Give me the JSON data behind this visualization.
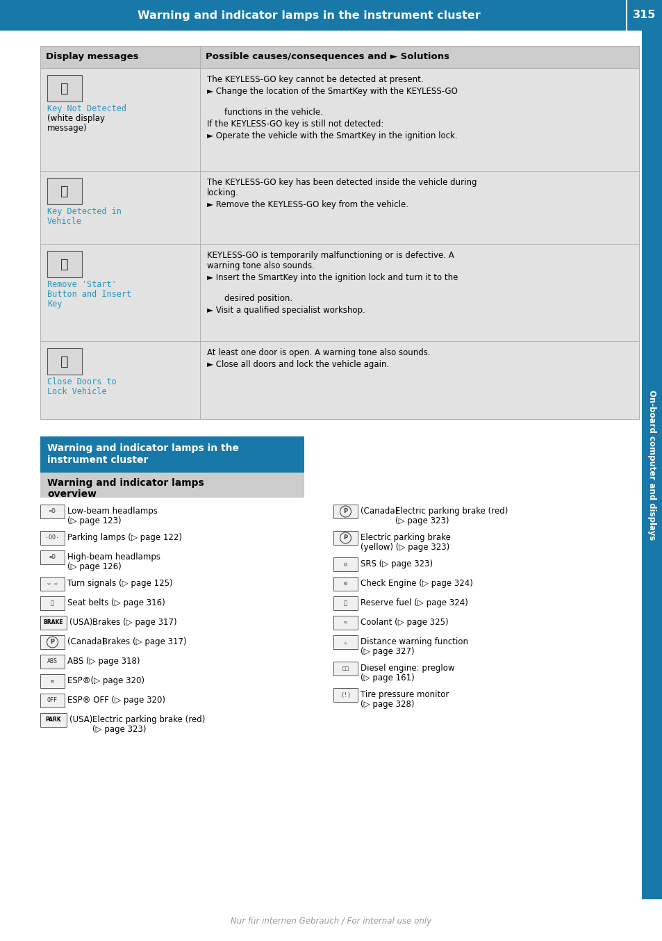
{
  "page_title": "Warning and indicator lamps in the instrument cluster",
  "page_number": "315",
  "header_bg": "#1878a8",
  "header_text_color": "#ffffff",
  "sidebar_text": "On-board computer and displays",
  "sidebar_bg": "#1878a8",
  "table_header_bg": "#cccccc",
  "table_row_bg": "#e2e2e2",
  "section2_header_bg": "#1878a8",
  "section2_sub_bg": "#cccccc",
  "table_header_col1": "Display messages",
  "table_header_col2": "Possible causes/consequences and ► Solutions",
  "blue_text_color": "#2596be",
  "rows": [
    {
      "label_blue": "Key Not Detected",
      "label_normal": "(white display\nmessage)",
      "content": [
        {
          "type": "plain",
          "text": "The KEYLESS-GO key cannot be detected at present."
        },
        {
          "type": "bullet",
          "text": "Change the location of the SmartKey with the KEYLESS-GO\n    functions in the vehicle."
        },
        {
          "type": "plain",
          "text": "If the KEYLESS-GO key is still not detected:"
        },
        {
          "type": "bullet",
          "text": "Operate the vehicle with the SmartKey in the ignition lock."
        }
      ]
    },
    {
      "label_blue": "Key Detected in\nVehicle",
      "label_normal": "",
      "content": [
        {
          "type": "plain",
          "text": "The KEYLESS-GO key has been detected inside the vehicle during\nlocking."
        },
        {
          "type": "bullet",
          "text": "Remove the KEYLESS-GO key from the vehicle."
        }
      ]
    },
    {
      "label_blue": "Remove 'Start'\nButton and Insert\nKey",
      "label_normal": "",
      "content": [
        {
          "type": "plain",
          "text": "KEYLESS-GO is temporarily malfunctioning or is defective. A\nwarning tone also sounds."
        },
        {
          "type": "bullet",
          "text": "Insert the SmartKey into the ignition lock and turn it to the\n    desired position."
        },
        {
          "type": "bullet",
          "text": "Visit a qualified specialist workshop."
        }
      ]
    },
    {
      "label_blue": "Close Doors to\nLock Vehicle",
      "label_normal": "",
      "content": [
        {
          "type": "plain",
          "text": "At least one door is open. A warning tone also sounds."
        },
        {
          "type": "bullet",
          "text": "Close all doors and lock the vehicle again."
        }
      ]
    }
  ],
  "left_items": [
    {
      "icon": "headlamp_low",
      "prefix": "",
      "text": "Low-beam headlamps\n(▷ page 123)"
    },
    {
      "icon": "parking_lamp",
      "prefix": "",
      "text": "Parking lamps (▷ page 122)"
    },
    {
      "icon": "headlamp_high",
      "prefix": "",
      "text": "High-beam headlamps\n(▷ page 126)"
    },
    {
      "icon": "turn_signal",
      "prefix": "",
      "text": "Turn signals (▷ page 125)"
    },
    {
      "icon": "seatbelt",
      "prefix": "",
      "text": "Seat belts (▷ page 316)"
    },
    {
      "icon": "brake_usa",
      "prefix": "(USA)",
      "text": "Brakes (▷ page 317)"
    },
    {
      "icon": "brake_canada",
      "prefix": "(Canada)",
      "text": "Brakes (▷ page 317)"
    },
    {
      "icon": "abs",
      "prefix": "",
      "text": "ABS (▷ page 318)"
    },
    {
      "icon": "esp",
      "prefix": "",
      "text": "ESP®(▷ page 320)"
    },
    {
      "icon": "esp_off",
      "prefix": "",
      "text": "ESP® OFF (▷ page 320)"
    },
    {
      "icon": "park_usa",
      "prefix": "(USA)",
      "text": "Electric parking brake (red)\n(▷ page 323)"
    }
  ],
  "right_items": [
    {
      "icon": "park_canada",
      "prefix": "(Canada)",
      "text": "Electric parking brake (red)\n(▷ page 323)"
    },
    {
      "icon": "epb_yellow",
      "prefix": "",
      "text": "Electric parking brake\n(yellow) (▷ page 323)"
    },
    {
      "icon": "srs",
      "prefix": "",
      "text": "SRS (▷ page 323)"
    },
    {
      "icon": "check_engine",
      "prefix": "",
      "text": "Check Engine (▷ page 324)"
    },
    {
      "icon": "reserve_fuel",
      "prefix": "",
      "text": "Reserve fuel (▷ page 324)"
    },
    {
      "icon": "coolant",
      "prefix": "",
      "text": "Coolant (▷ page 325)"
    },
    {
      "icon": "distance_warn",
      "prefix": "",
      "text": "Distance warning function\n(▷ page 327)"
    },
    {
      "icon": "diesel_preglow",
      "prefix": "",
      "text": "Diesel engine: preglow\n(▷ page 161)"
    },
    {
      "icon": "tire_pressure",
      "prefix": "",
      "text": "Tire pressure monitor\n(▷ page 328)"
    }
  ],
  "footer_text": "Nur für internen Gebrauch / For internal use only",
  "page_bg": "#ffffff"
}
